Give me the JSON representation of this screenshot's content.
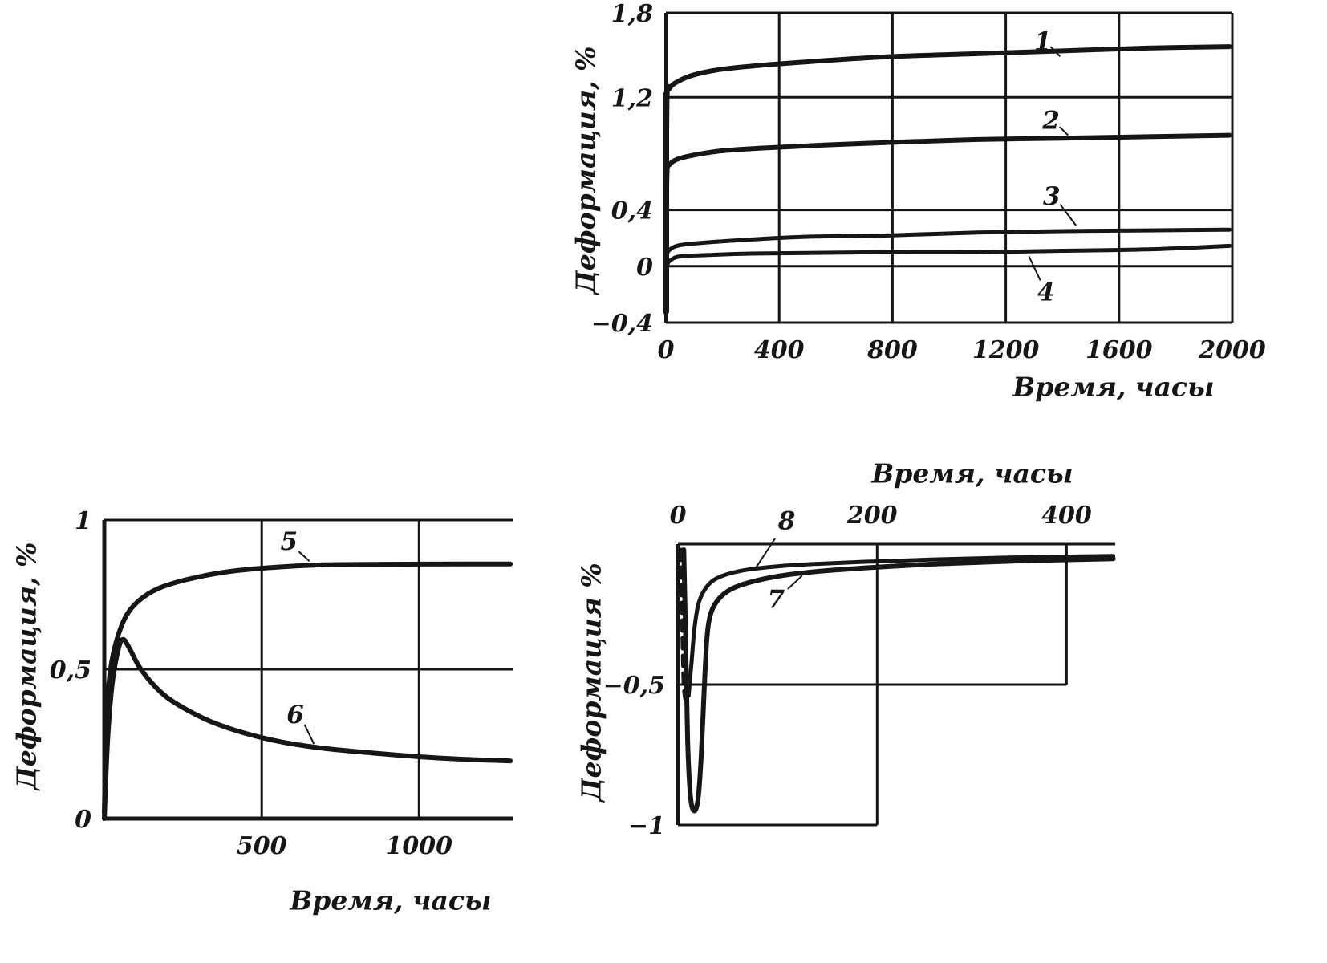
{
  "page": {
    "background": "#ffffff",
    "ink": "#161616"
  },
  "chart_data": [
    {
      "id": "creep-curves-long-term",
      "type": "line",
      "xlabel": "Время, часы",
      "ylabel": "Деформация, %",
      "x_range": [
        0,
        2000
      ],
      "y_range": [
        -0.4,
        1.8
      ],
      "x_ticks": [
        {
          "value": 0,
          "label": "0"
        },
        {
          "value": 400,
          "label": "400"
        },
        {
          "value": 800,
          "label": "800"
        },
        {
          "value": 1200,
          "label": "1200"
        },
        {
          "value": 1600,
          "label": "1600"
        },
        {
          "value": 2000,
          "label": "2000"
        }
      ],
      "y_ticks": [
        {
          "value": 1.8,
          "label": "1,8"
        },
        {
          "value": 1.2,
          "label": "1,2"
        },
        {
          "value": 0.4,
          "label": "0,4"
        },
        {
          "value": 0,
          "label": "0"
        },
        {
          "value": -0.4,
          "label": "−0,4"
        }
      ],
      "grid_segments": [
        {
          "x1": 0,
          "y1": 1.8,
          "x2": 2000,
          "y2": 1.8,
          "w": 3
        },
        {
          "x1": 0,
          "y1": -0.4,
          "x2": 2000,
          "y2": -0.4,
          "w": 3
        },
        {
          "x1": 0,
          "y1": -0.4,
          "x2": 0,
          "y2": 1.8,
          "w": 4
        },
        {
          "x1": 2000,
          "y1": -0.4,
          "x2": 2000,
          "y2": 1.8,
          "w": 3
        },
        {
          "x1": 400,
          "y1": -0.4,
          "x2": 400,
          "y2": 1.8,
          "w": 3
        },
        {
          "x1": 800,
          "y1": -0.4,
          "x2": 800,
          "y2": 1.8,
          "w": 3
        },
        {
          "x1": 1200,
          "y1": -0.4,
          "x2": 1200,
          "y2": 1.8,
          "w": 3
        },
        {
          "x1": 1600,
          "y1": -0.4,
          "x2": 1600,
          "y2": 1.8,
          "w": 3
        },
        {
          "x1": 0,
          "y1": 1.2,
          "x2": 2000,
          "y2": 1.2,
          "w": 3
        },
        {
          "x1": 0,
          "y1": 0.4,
          "x2": 2000,
          "y2": 0.4,
          "w": 3
        },
        {
          "x1": 0,
          "y1": 0,
          "x2": 2000,
          "y2": 0,
          "w": 3
        }
      ],
      "series": [
        {
          "name": "loading-line",
          "width": 8,
          "points": [
            [
              0,
              -0.32
            ],
            [
              0,
              1.22
            ]
          ]
        },
        {
          "name": "curve-1",
          "width": 6,
          "points": [
            [
              0,
              0.2
            ],
            [
              4,
              1.18
            ],
            [
              12,
              1.26
            ],
            [
              40,
              1.31
            ],
            [
              100,
              1.36
            ],
            [
              200,
              1.4
            ],
            [
              350,
              1.43
            ],
            [
              550,
              1.46
            ],
            [
              800,
              1.49
            ],
            [
              1100,
              1.51
            ],
            [
              1400,
              1.53
            ],
            [
              1700,
              1.55
            ],
            [
              1990,
              1.56
            ]
          ]
        },
        {
          "name": "curve-2",
          "width": 6,
          "points": [
            [
              0,
              0.1
            ],
            [
              4,
              0.66
            ],
            [
              12,
              0.72
            ],
            [
              40,
              0.76
            ],
            [
              100,
              0.79
            ],
            [
              200,
              0.82
            ],
            [
              350,
              0.84
            ],
            [
              550,
              0.86
            ],
            [
              800,
              0.88
            ],
            [
              1100,
              0.9
            ],
            [
              1400,
              0.91
            ],
            [
              1700,
              0.92
            ],
            [
              1990,
              0.93
            ]
          ]
        },
        {
          "name": "curve-3",
          "width": 5,
          "points": [
            [
              0,
              -0.05
            ],
            [
              4,
              0.08
            ],
            [
              15,
              0.12
            ],
            [
              50,
              0.15
            ],
            [
              150,
              0.17
            ],
            [
              300,
              0.19
            ],
            [
              500,
              0.21
            ],
            [
              800,
              0.22
            ],
            [
              1100,
              0.24
            ],
            [
              1400,
              0.25
            ],
            [
              1700,
              0.255
            ],
            [
              1990,
              0.26
            ]
          ]
        },
        {
          "name": "curve-4",
          "width": 5,
          "points": [
            [
              0,
              -0.1
            ],
            [
              4,
              0.0
            ],
            [
              15,
              0.04
            ],
            [
              50,
              0.07
            ],
            [
              150,
              0.08
            ],
            [
              300,
              0.09
            ],
            [
              500,
              0.095
            ],
            [
              800,
              0.1
            ],
            [
              1100,
              0.1
            ],
            [
              1400,
              0.11
            ],
            [
              1700,
              0.12
            ],
            [
              1990,
              0.145
            ]
          ]
        }
      ],
      "annotations": [
        {
          "text": "1",
          "x": 1331,
          "y": 1.6,
          "leader": [
            [
              1358,
              1.56
            ],
            [
              1392,
              1.49
            ]
          ]
        },
        {
          "text": "2",
          "x": 1360,
          "y": 1.04,
          "leader": [
            [
              1390,
              0.99
            ],
            [
              1420,
              0.93
            ]
          ]
        },
        {
          "text": "3",
          "x": 1362,
          "y": 0.5,
          "leader": [
            [
              1392,
              0.44
            ],
            [
              1448,
              0.29
            ]
          ]
        },
        {
          "text": "4",
          "x": 1342,
          "y": -0.18,
          "leader": [
            [
              1322,
              -0.1
            ],
            [
              1282,
              0.07
            ]
          ]
        }
      ]
    },
    {
      "id": "creep-curves-rise-and-relax",
      "type": "line",
      "xlabel": "Время, часы",
      "ylabel": "Деформация, %",
      "x_range": [
        0,
        1300
      ],
      "y_range": [
        0,
        1
      ],
      "x_ticks": [
        {
          "value": 500,
          "label": "500"
        },
        {
          "value": 1000,
          "label": "1000"
        }
      ],
      "y_ticks": [
        {
          "value": 1,
          "label": "1"
        },
        {
          "value": 0.5,
          "label": "0,5"
        },
        {
          "value": 0,
          "label": "0"
        }
      ],
      "grid_segments": [
        {
          "x1": 0,
          "y1": 1,
          "x2": 1300,
          "y2": 1,
          "w": 3
        },
        {
          "x1": 0,
          "y1": 0,
          "x2": 1300,
          "y2": 0,
          "w": 5
        },
        {
          "x1": 0,
          "y1": 0,
          "x2": 0,
          "y2": 1,
          "w": 5
        },
        {
          "x1": 500,
          "y1": 0,
          "x2": 500,
          "y2": 1,
          "w": 3
        },
        {
          "x1": 1000,
          "y1": 0,
          "x2": 1000,
          "y2": 1,
          "w": 3
        },
        {
          "x1": 0,
          "y1": 0.5,
          "x2": 1300,
          "y2": 0.5,
          "w": 3
        }
      ],
      "series": [
        {
          "name": "curve-5",
          "width": 6,
          "points": [
            [
              0,
              0.02
            ],
            [
              8,
              0.35
            ],
            [
              20,
              0.5
            ],
            [
              40,
              0.6
            ],
            [
              70,
              0.68
            ],
            [
              110,
              0.73
            ],
            [
              170,
              0.77
            ],
            [
              260,
              0.8
            ],
            [
              380,
              0.825
            ],
            [
              520,
              0.84
            ],
            [
              700,
              0.85
            ],
            [
              900,
              0.852
            ],
            [
              1150,
              0.853
            ],
            [
              1290,
              0.853
            ]
          ]
        },
        {
          "name": "curve-6",
          "width": 6,
          "points": [
            [
              0,
              0.0
            ],
            [
              10,
              0.25
            ],
            [
              25,
              0.45
            ],
            [
              45,
              0.57
            ],
            [
              60,
              0.6
            ],
            [
              80,
              0.57
            ],
            [
              110,
              0.51
            ],
            [
              150,
              0.455
            ],
            [
              200,
              0.405
            ],
            [
              270,
              0.36
            ],
            [
              350,
              0.32
            ],
            [
              450,
              0.285
            ],
            [
              570,
              0.255
            ],
            [
              700,
              0.235
            ],
            [
              850,
              0.22
            ],
            [
              1000,
              0.207
            ],
            [
              1150,
              0.198
            ],
            [
              1290,
              0.193
            ]
          ]
        }
      ],
      "annotations": [
        {
          "text": "5",
          "x": 587,
          "y": 0.93,
          "leader": [
            [
              618,
              0.895
            ],
            [
              652,
              0.862
            ]
          ]
        },
        {
          "text": "6",
          "x": 607,
          "y": 0.35,
          "leader": [
            [
              636,
              0.315
            ],
            [
              666,
              0.25
            ]
          ]
        }
      ]
    },
    {
      "id": "recovery-curves-negative",
      "type": "line",
      "xlabel": "Время, часы",
      "ylabel": "Деформация %",
      "x_range": [
        0,
        450
      ],
      "y_range": [
        -1,
        0
      ],
      "x_ticks": [
        {
          "value": 0,
          "label": "0"
        },
        {
          "value": 200,
          "label": "200"
        },
        {
          "value": 400,
          "label": "400"
        }
      ],
      "y_ticks": [
        {
          "value": -0.5,
          "label": "−0,5"
        },
        {
          "value": -1,
          "label": "−1"
        }
      ],
      "grid_segments": [
        {
          "x1": 0,
          "y1": 0,
          "x2": 450,
          "y2": 0,
          "w": 3
        },
        {
          "x1": 0,
          "y1": -1,
          "x2": 0,
          "y2": 0,
          "w": 4
        },
        {
          "x1": 0,
          "y1": -1,
          "x2": 205,
          "y2": -1,
          "w": 3
        },
        {
          "x1": 205,
          "y1": -1,
          "x2": 205,
          "y2": 0,
          "w": 3
        },
        {
          "x1": 0,
          "y1": -0.5,
          "x2": 400,
          "y2": -0.5,
          "w": 3
        },
        {
          "x1": 400,
          "y1": -0.5,
          "x2": 400,
          "y2": 0,
          "w": 3
        }
      ],
      "series": [
        {
          "name": "curve-7",
          "width": 6,
          "points": [
            [
              6,
              -0.02
            ],
            [
              8,
              -0.35
            ],
            [
              10,
              -0.7
            ],
            [
              13,
              -0.9
            ],
            [
              17,
              -0.95
            ],
            [
              21,
              -0.9
            ],
            [
              24,
              -0.75
            ],
            [
              27,
              -0.52
            ],
            [
              30,
              -0.33
            ],
            [
              34,
              -0.245
            ],
            [
              42,
              -0.195
            ],
            [
              55,
              -0.16
            ],
            [
              75,
              -0.135
            ],
            [
              105,
              -0.113
            ],
            [
              145,
              -0.097
            ],
            [
              200,
              -0.083
            ],
            [
              270,
              -0.07
            ],
            [
              350,
              -0.06
            ],
            [
              448,
              -0.052
            ]
          ]
        },
        {
          "name": "curve-8-drop",
          "width": 5,
          "dash": "13 9",
          "points": [
            [
              3,
              -0.02
            ],
            [
              4,
              -0.18
            ],
            [
              5,
              -0.38
            ],
            [
              6,
              -0.5
            ],
            [
              8,
              -0.555
            ],
            [
              11,
              -0.54
            ]
          ]
        },
        {
          "name": "curve-8",
          "width": 5,
          "points": [
            [
              11,
              -0.54
            ],
            [
              14,
              -0.42
            ],
            [
              17,
              -0.3
            ],
            [
              21,
              -0.215
            ],
            [
              27,
              -0.165
            ],
            [
              36,
              -0.13
            ],
            [
              50,
              -0.108
            ],
            [
              70,
              -0.092
            ],
            [
              100,
              -0.08
            ],
            [
              140,
              -0.071
            ],
            [
              190,
              -0.063
            ],
            [
              260,
              -0.055
            ],
            [
              340,
              -0.048
            ],
            [
              448,
              -0.042
            ]
          ]
        }
      ],
      "annotations": [
        {
          "text": "8",
          "x": 112,
          "y": 0.085,
          "leader": [
            [
              100,
              0.02
            ],
            [
              80,
              -0.085
            ]
          ]
        },
        {
          "text": "7",
          "x": 101,
          "y": -0.195,
          "leader": [
            [
              113,
              -0.16
            ],
            [
              128,
              -0.112
            ]
          ]
        }
      ]
    }
  ]
}
